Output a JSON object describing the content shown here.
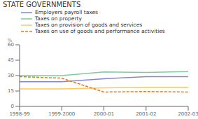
{
  "chart_data": {
    "type": "line",
    "title": "STATE GOVERNMENTS",
    "ylabel": "%",
    "categories": [
      "1998-99",
      "1999-2000",
      "2000-01",
      "2001-02",
      "2002-03"
    ],
    "series": [
      {
        "name": "Employers payroll taxes",
        "color": "#8884d8",
        "line_style": "solid",
        "values": [
          24,
          24,
          27,
          29,
          29
        ]
      },
      {
        "name": "Taxes on property",
        "color": "#82ca9d",
        "line_style": "solid",
        "values": [
          30,
          30,
          33.5,
          33,
          34
        ]
      },
      {
        "name": "Taxes on provision of goods and services",
        "color": "#ffc658",
        "line_style": "solid",
        "values": [
          17,
          17,
          18,
          18.5,
          18.5
        ]
      },
      {
        "name": "Taxes on use of goods and performance activities",
        "color": "#ff7300",
        "line_style": "dashed",
        "values": [
          29,
          27.5,
          14,
          14.5,
          14
        ]
      }
    ],
    "ylim": [
      0,
      60
    ],
    "yticks": [
      0,
      15,
      30,
      45,
      60
    ],
    "grid": false,
    "legend": "top"
  }
}
